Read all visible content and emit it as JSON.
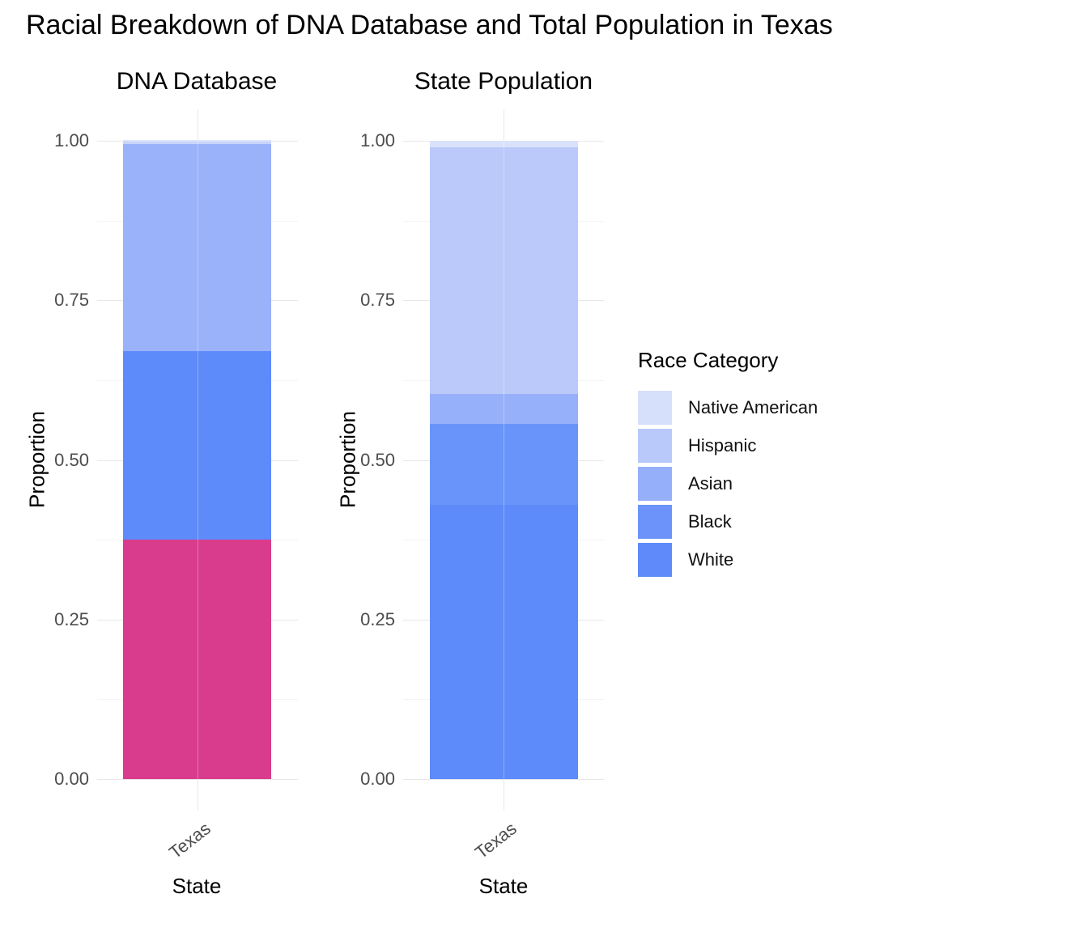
{
  "title": "Racial Breakdown of DNA Database and Total Population in Texas",
  "legend": {
    "title": "Race Category",
    "entries": [
      {
        "label": "Native American",
        "color": "#d7e0fa"
      },
      {
        "label": "Hispanic",
        "color": "#b9c9fa"
      },
      {
        "label": "Asian",
        "color": "#96affa"
      },
      {
        "label": "Black",
        "color": "#6b93f9"
      },
      {
        "label": "White",
        "color": "#5e8bf9"
      }
    ]
  },
  "chart_data": {
    "type": "bar",
    "subtype": "stacked-proportion-columns",
    "grid": true,
    "legend_position": "right",
    "panels": [
      {
        "title": "DNA Database",
        "xlabel": "State",
        "ylabel": "Proportion",
        "categories": [
          "Texas"
        ],
        "ylim": [
          0,
          1
        ],
        "y_ticks": [
          "0.00",
          "0.25",
          "0.50",
          "0.75",
          "1.00"
        ],
        "segments_bottom_to_top": [
          {
            "category": "Black",
            "value": 0.375,
            "color": "#d93c8c",
            "highlighted": true
          },
          {
            "category": "White",
            "value": 0.295,
            "color": "#5e8bfa",
            "highlighted": false
          },
          {
            "category": "Hispanic",
            "value": 0.325,
            "color": "#9ab2f9",
            "highlighted": false
          },
          {
            "category": "Asian",
            "value": 0.004,
            "color": "#c9d4fa",
            "highlighted": false
          },
          {
            "category": "Native American",
            "value": 0.002,
            "color": "#dde4f9",
            "highlighted": false
          }
        ]
      },
      {
        "title": "State Population",
        "xlabel": "State",
        "ylabel": "Proportion",
        "categories": [
          "Texas"
        ],
        "ylim": [
          0,
          1
        ],
        "y_ticks": [
          "0.00",
          "0.25",
          "0.50",
          "0.75",
          "1.00"
        ],
        "segments_bottom_to_top": [
          {
            "category": "White",
            "value": 0.43,
            "color": "#5e8bfa",
            "highlighted": false
          },
          {
            "category": "Black",
            "value": 0.126,
            "color": "#6994fa",
            "highlighted": false
          },
          {
            "category": "Asian",
            "value": 0.047,
            "color": "#97b0fa",
            "highlighted": false
          },
          {
            "category": "Hispanic",
            "value": 0.387,
            "color": "#bac9fa",
            "highlighted": false
          },
          {
            "category": "Native American",
            "value": 0.01,
            "color": "#d9e2fa",
            "highlighted": false
          }
        ]
      }
    ]
  }
}
